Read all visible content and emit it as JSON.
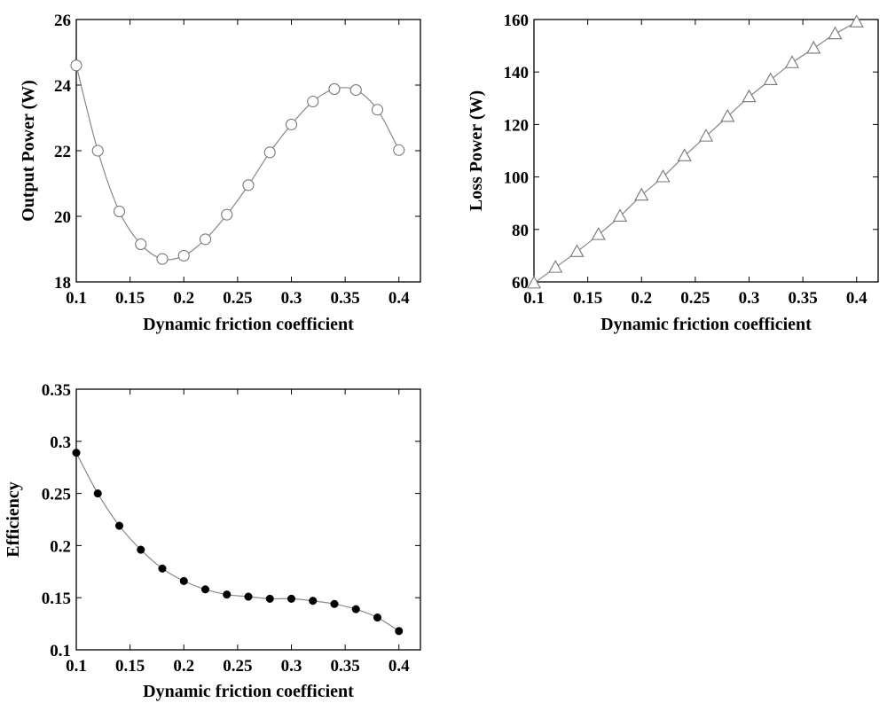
{
  "chart_data": [
    {
      "type": "line",
      "marker": "circle",
      "title": "",
      "xlabel": "Dynamic friction coefficient",
      "ylabel": "Output Power (W)",
      "xlim": [
        0.1,
        0.42
      ],
      "ylim": [
        18,
        26
      ],
      "xticks": [
        0.1,
        0.15,
        0.2,
        0.25,
        0.3,
        0.35,
        0.4
      ],
      "xtick_labels": [
        "0.1",
        "0.15",
        "0.2",
        "0.25",
        "0.3",
        "0.35",
        "0.4"
      ],
      "yticks": [
        18,
        20,
        22,
        24,
        26
      ],
      "ytick_labels": [
        "18",
        "20",
        "22",
        "24",
        "26"
      ],
      "x": [
        0.1,
        0.12,
        0.14,
        0.16,
        0.18,
        0.2,
        0.22,
        0.24,
        0.26,
        0.28,
        0.3,
        0.32,
        0.34,
        0.36,
        0.38,
        0.4
      ],
      "y": [
        24.6,
        22.0,
        20.15,
        19.15,
        18.7,
        18.8,
        19.3,
        20.05,
        20.95,
        21.95,
        22.8,
        23.5,
        23.88,
        23.85,
        23.25,
        22.02
      ],
      "grid": false,
      "line_color": "#888888"
    },
    {
      "type": "line",
      "marker": "triangle",
      "title": "",
      "xlabel": "Dynamic friction coefficient",
      "ylabel": "Loss Power (W)",
      "xlim": [
        0.1,
        0.42
      ],
      "ylim": [
        60,
        160
      ],
      "xticks": [
        0.1,
        0.15,
        0.2,
        0.25,
        0.3,
        0.35,
        0.4
      ],
      "xtick_labels": [
        "0.1",
        "0.15",
        "0.2",
        "0.25",
        "0.3",
        "0.35",
        "0.4"
      ],
      "yticks": [
        60,
        80,
        100,
        120,
        140,
        160
      ],
      "ytick_labels": [
        "60",
        "80",
        "100",
        "120",
        "140",
        "160"
      ],
      "x": [
        0.1,
        0.12,
        0.14,
        0.16,
        0.18,
        0.2,
        0.22,
        0.24,
        0.26,
        0.28,
        0.3,
        0.32,
        0.34,
        0.36,
        0.38,
        0.4
      ],
      "y": [
        59.5,
        65.5,
        71.5,
        78,
        85,
        93,
        100,
        108,
        115.5,
        123,
        130.5,
        137,
        143.5,
        149,
        154.5,
        159
      ],
      "grid": false,
      "line_color": "#888888"
    },
    {
      "type": "line",
      "marker": "dot",
      "title": "",
      "xlabel": "Dynamic friction coefficient",
      "ylabel": "Efficiency",
      "xlim": [
        0.1,
        0.42
      ],
      "ylim": [
        0.1,
        0.35
      ],
      "xticks": [
        0.1,
        0.15,
        0.2,
        0.25,
        0.3,
        0.35,
        0.4
      ],
      "xtick_labels": [
        "0.1",
        "0.15",
        "0.2",
        "0.25",
        "0.3",
        "0.35",
        "0.4"
      ],
      "yticks": [
        0.1,
        0.15,
        0.2,
        0.25,
        0.3,
        0.35
      ],
      "ytick_labels": [
        "0.1",
        "0.15",
        "0.2",
        "0.25",
        "0.3",
        "0.35"
      ],
      "x": [
        0.1,
        0.12,
        0.14,
        0.16,
        0.18,
        0.2,
        0.22,
        0.24,
        0.26,
        0.28,
        0.3,
        0.32,
        0.34,
        0.36,
        0.38,
        0.4
      ],
      "y": [
        0.289,
        0.25,
        0.219,
        0.196,
        0.178,
        0.166,
        0.158,
        0.153,
        0.151,
        0.149,
        0.149,
        0.147,
        0.144,
        0.139,
        0.131,
        0.118
      ],
      "grid": false,
      "line_color": "#888888"
    }
  ]
}
